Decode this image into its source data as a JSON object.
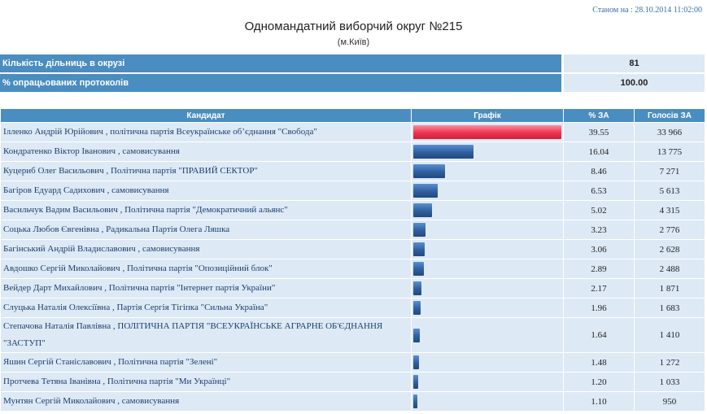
{
  "status_text": "Станом на : 28.10.2014 11:02:00",
  "title": "Одномандатний виборчий округ №215",
  "subtitle": "(м.Київ)",
  "summary": [
    {
      "label": "Кількість дільниць в окрузі",
      "value": "81"
    },
    {
      "label": "% опрацьованих протоколів",
      "value": "100.00"
    }
  ],
  "columns": {
    "candidate": "Кандидат",
    "graph": "Графік",
    "percent": "% ЗА",
    "votes": "Голосів ЗА"
  },
  "colors": {
    "header_blue": "#4a8dc0",
    "cell_bg": "#dde9f5",
    "bar_blue": "#2f5f9e",
    "bar_leader": "#ea3550"
  },
  "candidates": [
    {
      "name": "Ілленко Андрій Юрійович",
      "party": " , політична партія Всеукраїнське об’єднання \"Свобода\"",
      "percent": "39.55",
      "votes": "33 966",
      "share": 39.55
    },
    {
      "name": "Кондратенко Віктор Іванович",
      "party": " , самовисування",
      "percent": "16.04",
      "votes": "13 775",
      "share": 16.04
    },
    {
      "name": "Куцериб Олег Васильович",
      "party": " , Політична партія \"ПРАВИЙ СЕКТОР\"",
      "percent": "8.46",
      "votes": "7 271",
      "share": 8.46
    },
    {
      "name": "Багіров Едуард Садихович",
      "party": " , самовисування",
      "percent": "6.53",
      "votes": "5 613",
      "share": 6.53
    },
    {
      "name": "Васильчук Вадим Васильович",
      "party": " , Політична партія \"Демократичний альянс\"",
      "percent": "5.02",
      "votes": "4 315",
      "share": 5.02
    },
    {
      "name": "Соцька Любов Євгенівна",
      "party": " , Радикальна Партія Олега Ляшка",
      "percent": "3.23",
      "votes": "2 776",
      "share": 3.23
    },
    {
      "name": "Багінський Андрій Владиславович",
      "party": " , самовисування",
      "percent": "3.06",
      "votes": "2 628",
      "share": 3.06
    },
    {
      "name": "Авдошко Сергій Миколайович",
      "party": " , Політична партія \"Опозиційний блок\"",
      "percent": "2.89",
      "votes": "2 488",
      "share": 2.89
    },
    {
      "name": "Вейдер Дарт Михайлович",
      "party": " , Політична партія \"Інтернет партія України\"",
      "percent": "2.17",
      "votes": "1 871",
      "share": 2.17
    },
    {
      "name": "Слуцька Наталія Олексіївна",
      "party": " , Партія Сергія Тігіпка \"Сильна Україна\"",
      "percent": "1.96",
      "votes": "1 683",
      "share": 1.96
    },
    {
      "name": "Степачова Наталія Павлівна",
      "party": " , ПОЛІТИЧНА ПАРТІЯ \"ВСЕУКРАЇНСЬКЕ АГРАРНЕ ОБ'ЄДНАННЯ \"ЗАСТУП\"",
      "percent": "1.64",
      "votes": "1 410",
      "share": 1.64
    },
    {
      "name": "Яшин Сергій Станіславович",
      "party": " , Політична партія \"Зелені\"",
      "percent": "1.48",
      "votes": "1 272",
      "share": 1.48
    },
    {
      "name": "Протчева Тетяна Іванівна",
      "party": " , Політична партія \"Ми Українці\"",
      "percent": "1.20",
      "votes": "1 033",
      "share": 1.2
    },
    {
      "name": "Мунтян Сергій Миколайович",
      "party": " , самовисування",
      "percent": "1.10",
      "votes": "950",
      "share": 1.1
    }
  ]
}
